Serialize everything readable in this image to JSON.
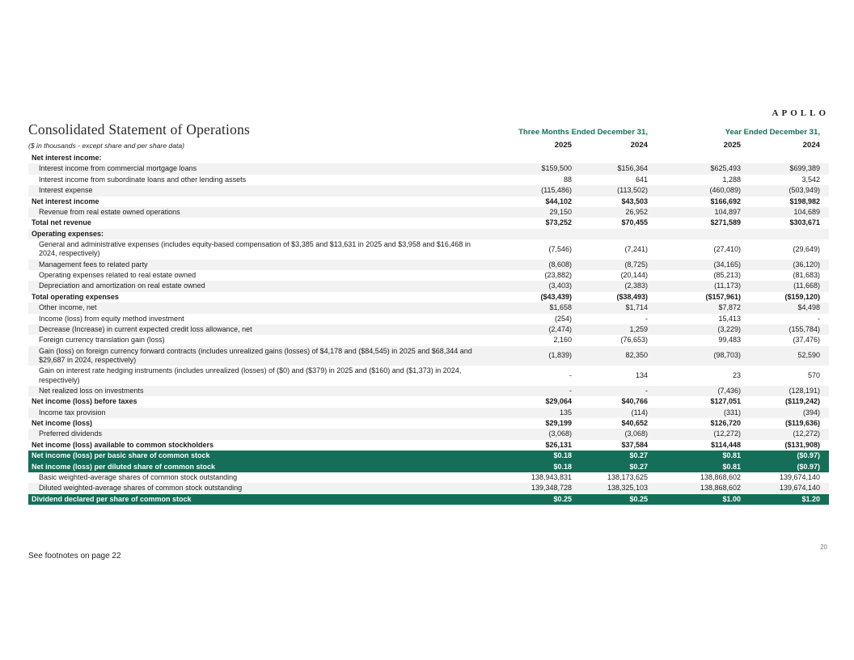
{
  "brand": "APOLLO",
  "page": {
    "title": "Consolidated Statement of Operations",
    "units_note": "($ in thousands - except share and per share data)",
    "footnote": "See footnotes on page 22",
    "page_number": "20"
  },
  "colors": {
    "accent": "#156e58",
    "shade": "#f2f2f2"
  },
  "table": {
    "col_groups": [
      "Three Months Ended December 31,",
      "Year Ended December 31,"
    ],
    "col_years": [
      "2025",
      "2024",
      "2025",
      "2024"
    ],
    "rows": [
      {
        "label": "Net interest income:",
        "values": [
          "",
          "",
          "",
          ""
        ],
        "section": true
      },
      {
        "label": "Interest income from commercial mortgage loans",
        "values": [
          "$159,500",
          "$156,364",
          "$625,493",
          "$699,389"
        ],
        "indent": true,
        "shade": true
      },
      {
        "label": "Interest income from subordinate loans and other lending assets",
        "values": [
          "88",
          "641",
          "1,288",
          "3,542"
        ],
        "indent": true
      },
      {
        "label": "Interest expense",
        "values": [
          "(115,486)",
          "(113,502)",
          "(460,089)",
          "(503,949)"
        ],
        "indent": true,
        "shade": true
      },
      {
        "label": "Net interest income",
        "values": [
          "$44,102",
          "$43,503",
          "$166,692",
          "$198,982"
        ],
        "bold": true
      },
      {
        "label": "Revenue from real estate owned operations",
        "values": [
          "29,150",
          "26,952",
          "104,897",
          "104,689"
        ],
        "indent": true,
        "shade": true
      },
      {
        "label": "Total net revenue",
        "values": [
          "$73,252",
          "$70,455",
          "$271,589",
          "$303,671"
        ],
        "bold": true
      },
      {
        "label": "Operating expenses:",
        "values": [
          "",
          "",
          "",
          ""
        ],
        "section": true,
        "shade": true
      },
      {
        "label": "General and administrative expenses (includes equity-based compensation of $3,385 and $13,631 in 2025 and $3,958 and $16,468 in 2024, respectively)",
        "values": [
          "(7,546)",
          "(7,241)",
          "(27,410)",
          "(29,649)"
        ],
        "indent": true
      },
      {
        "label": "Management fees to related party",
        "values": [
          "(8,608)",
          "(8,725)",
          "(34,165)",
          "(36,120)"
        ],
        "indent": true,
        "shade": true
      },
      {
        "label": "Operating expenses related to real estate owned",
        "values": [
          "(23,882)",
          "(20,144)",
          "(85,213)",
          "(81,683)"
        ],
        "indent": true
      },
      {
        "label": "Depreciation and amortization on real estate owned",
        "values": [
          "(3,403)",
          "(2,383)",
          "(11,173)",
          "(11,668)"
        ],
        "indent": true,
        "shade": true
      },
      {
        "label": "Total operating expenses",
        "values": [
          "($43,439)",
          "($38,493)",
          "($157,961)",
          "($159,120)"
        ],
        "bold": true
      },
      {
        "label": "Other income, net",
        "values": [
          "$1,658",
          "$1,714",
          "$7,872",
          "$4,498"
        ],
        "indent": true,
        "shade": true
      },
      {
        "label": "Income (loss) from equity method investment",
        "values": [
          "(254)",
          "-",
          "15,413",
          "-"
        ],
        "indent": true
      },
      {
        "label": "Decrease (Increase) in current expected credit loss allowance, net",
        "values": [
          "(2,474)",
          "1,259",
          "(3,229)",
          "(155,784)"
        ],
        "indent": true,
        "shade": true
      },
      {
        "label": "Foreign currency translation gain (loss)",
        "values": [
          "2,160",
          "(76,653)",
          "99,483",
          "(37,476)"
        ],
        "indent": true
      },
      {
        "label": "Gain (loss) on foreign currency forward contracts (includes unrealized gains (losses) of $4,178 and ($84,545) in 2025 and $68,344 and $29,687 in 2024, respectively)",
        "values": [
          "(1,839)",
          "82,350",
          "(98,703)",
          "52,590"
        ],
        "indent": true,
        "shade": true
      },
      {
        "label": "Gain on interest rate hedging instruments (includes unrealized (losses) of ($0) and ($379) in 2025 and ($160) and ($1,373) in 2024, respectively)",
        "values": [
          "-",
          "134",
          "23",
          "570"
        ],
        "indent": true
      },
      {
        "label": "Net realized loss on investments",
        "values": [
          "-",
          "-",
          "(7,436)",
          "(128,191)"
        ],
        "indent": true,
        "shade": true
      },
      {
        "label": "Net income (loss) before taxes",
        "values": [
          "$29,064",
          "$40,766",
          "$127,051",
          "($119,242)"
        ],
        "bold": true
      },
      {
        "label": "Income tax provision",
        "values": [
          "135",
          "(114)",
          "(331)",
          "(394)"
        ],
        "indent": true,
        "shade": true
      },
      {
        "label": "Net income (loss)",
        "values": [
          "$29,199",
          "$40,652",
          "$126,720",
          "($119,636)"
        ],
        "bold": true
      },
      {
        "label": "Preferred dividends",
        "values": [
          "(3,068)",
          "(3,068)",
          "(12,272)",
          "(12,272)"
        ],
        "indent": true,
        "shade": true
      },
      {
        "label": "Net income (loss) available to common stockholders",
        "values": [
          "$26,131",
          "$37,584",
          "$114,448",
          "($131,908)"
        ],
        "bold": true
      },
      {
        "label": "Net income (loss) per basic share of common stock",
        "values": [
          "$0.18",
          "$0.27",
          "$0.81",
          "($0.97)"
        ],
        "highlight": true
      },
      {
        "label": "Net income (loss) per diluted share of common stock",
        "values": [
          "$0.18",
          "$0.27",
          "$0.81",
          "($0.97)"
        ],
        "highlight": true
      },
      {
        "label": "Basic weighted-average shares of common stock outstanding",
        "values": [
          "138,943,831",
          "138,173,625",
          "138,868,602",
          "139,674,140"
        ],
        "indent": true
      },
      {
        "label": "Diluted weighted-average shares of common stock outstanding",
        "values": [
          "139,348,728",
          "138,325,103",
          "138,868,602",
          "139,674,140"
        ],
        "indent": true,
        "shade": true
      },
      {
        "label": "Dividend declared per share of common stock",
        "values": [
          "$0.25",
          "$0.25",
          "$1.00",
          "$1.20"
        ],
        "highlight": true
      }
    ]
  }
}
